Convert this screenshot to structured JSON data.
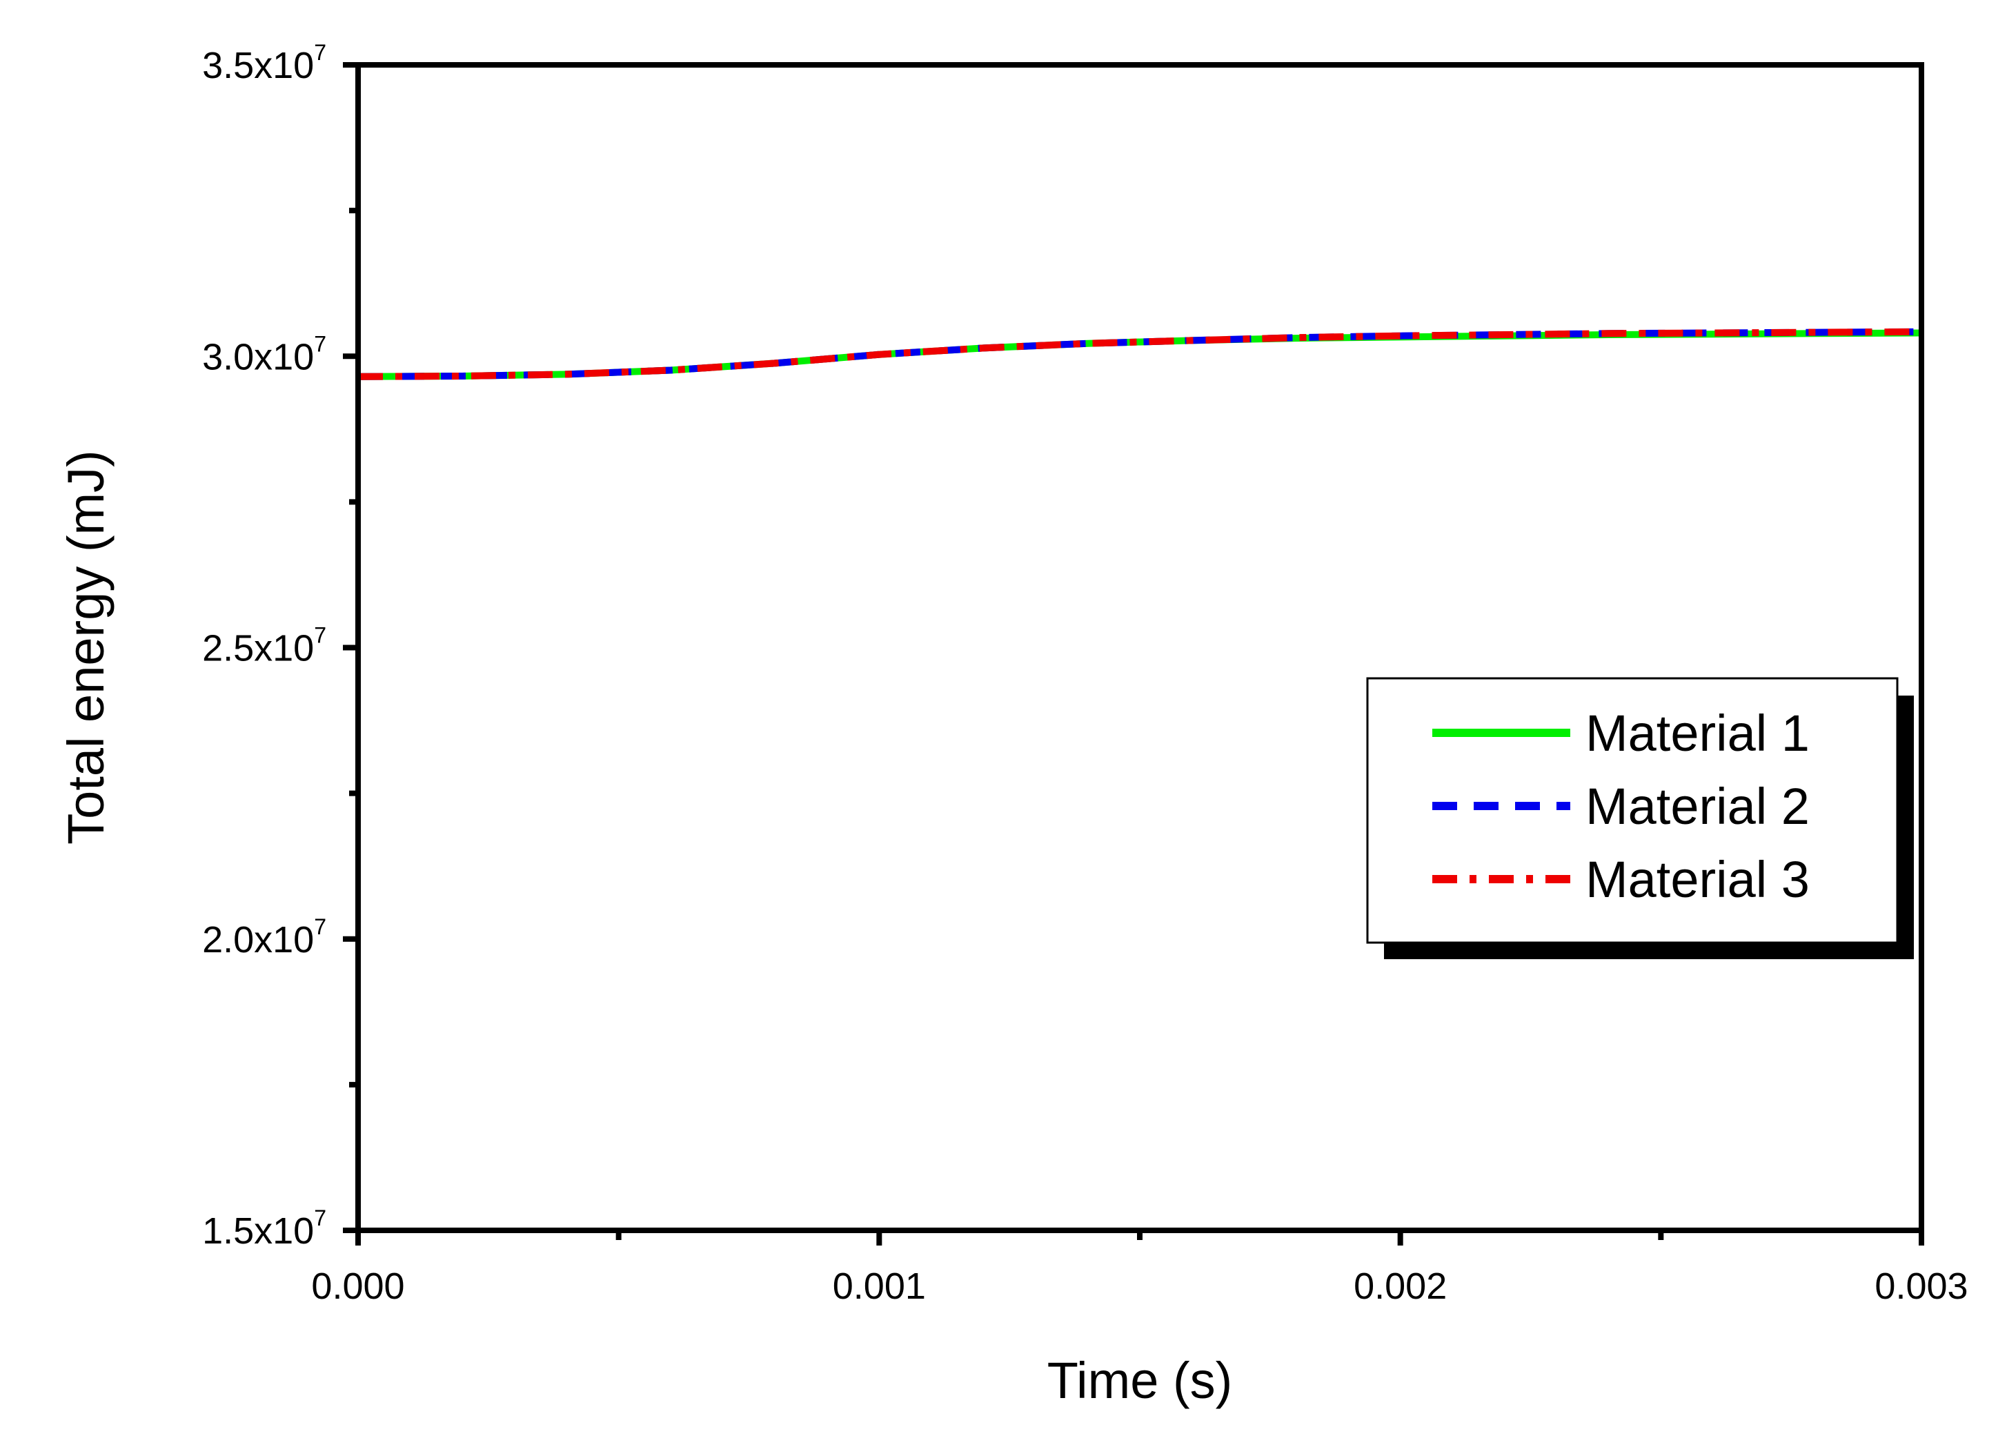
{
  "chart_data": {
    "type": "line",
    "title": "",
    "xlabel": "Time (s)",
    "ylabel": "Total energy (mJ)",
    "xlim": [
      0.0,
      0.003
    ],
    "ylim": [
      15000000,
      35000000
    ],
    "x_ticks": [
      0.0,
      0.001,
      0.002,
      0.003
    ],
    "x_tick_labels": [
      "0.000",
      "0.001",
      "0.002",
      "0.003"
    ],
    "x_minor_ticks": [
      0.0005,
      0.0015,
      0.0025
    ],
    "y_ticks": [
      15000000,
      20000000,
      25000000,
      30000000,
      35000000
    ],
    "y_tick_labels": [
      {
        "mantissa": "1.5x10",
        "exponent": "7"
      },
      {
        "mantissa": "2.0x10",
        "exponent": "7"
      },
      {
        "mantissa": "2.5x10",
        "exponent": "7"
      },
      {
        "mantissa": "3.0x10",
        "exponent": "7"
      },
      {
        "mantissa": "3.5x10",
        "exponent": "7"
      }
    ],
    "y_minor_ticks": [
      17500000,
      22500000,
      27500000,
      32500000
    ],
    "grid": false,
    "legend_position": "right",
    "series": [
      {
        "name": "Material 1",
        "color": "#00ee00",
        "dash": "solid",
        "x": [
          0.0,
          0.0002,
          0.0004,
          0.0006,
          0.0008,
          0.001,
          0.0012,
          0.0014,
          0.0016,
          0.0018,
          0.002,
          0.0022,
          0.0024,
          0.0026,
          0.0028,
          0.003
        ],
        "y": [
          29650000,
          29660000,
          29690000,
          29760000,
          29880000,
          30030000,
          30140000,
          30220000,
          30270000,
          30310000,
          30330000,
          30350000,
          30370000,
          30380000,
          30390000,
          30400000
        ]
      },
      {
        "name": "Material 2",
        "color": "#0000ee",
        "dash": "dashed",
        "x": [
          0.0,
          0.0002,
          0.0004,
          0.0006,
          0.0008,
          0.001,
          0.0012,
          0.0014,
          0.0016,
          0.0018,
          0.002,
          0.0022,
          0.0024,
          0.0026,
          0.0028,
          0.003
        ],
        "y": [
          29650000,
          29660000,
          29690000,
          29760000,
          29880000,
          30030000,
          30140000,
          30220000,
          30270000,
          30320000,
          30350000,
          30370000,
          30390000,
          30400000,
          30410000,
          30420000
        ]
      },
      {
        "name": "Material 3",
        "color": "#ee0000",
        "dash": "dashdot",
        "x": [
          0.0,
          0.0002,
          0.0004,
          0.0006,
          0.0008,
          0.001,
          0.0012,
          0.0014,
          0.0016,
          0.0018,
          0.002,
          0.0022,
          0.0024,
          0.0026,
          0.0028,
          0.003
        ],
        "y": [
          29650000,
          29660000,
          29690000,
          29760000,
          29880000,
          30030000,
          30140000,
          30220000,
          30270000,
          30320000,
          30350000,
          30370000,
          30390000,
          30400000,
          30410000,
          30420000
        ]
      }
    ]
  }
}
